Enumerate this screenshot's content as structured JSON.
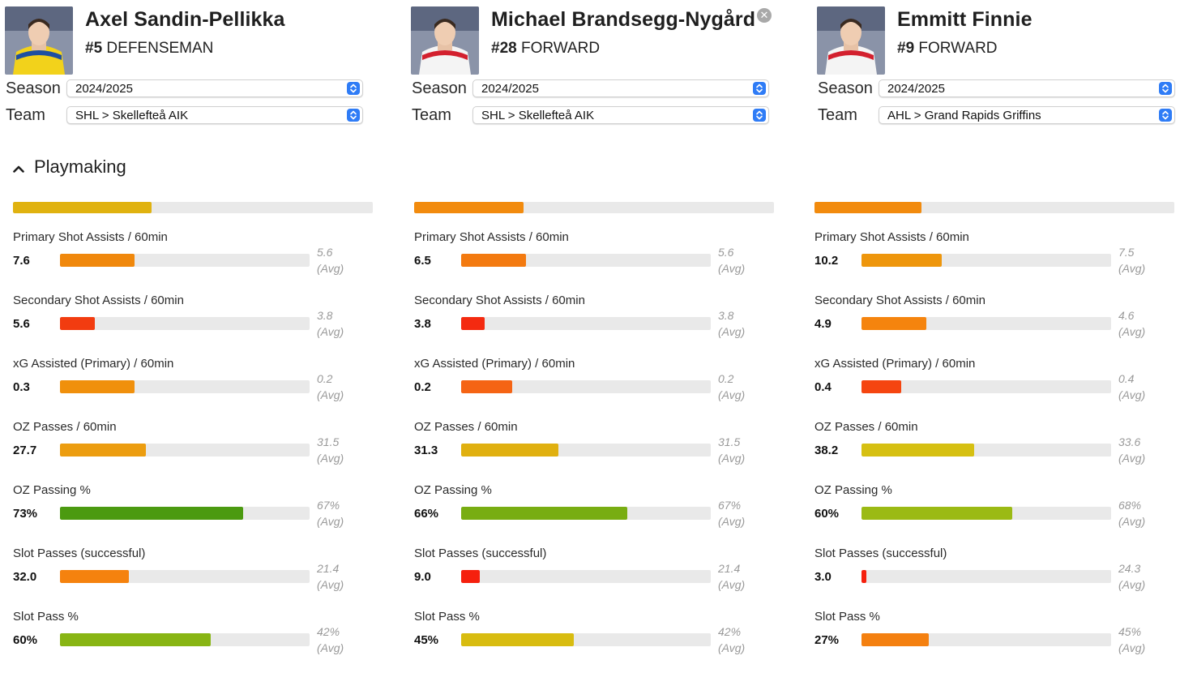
{
  "section_title": "Playmaking",
  "labels": {
    "season": "Season",
    "team": "Team"
  },
  "players": [
    {
      "name": "Axel Sandin-Pellikka",
      "number": "#5",
      "position": "DEFENSEMAN",
      "season": "2024/2025",
      "team": "SHL > Skellefteå AIK",
      "has_close": false,
      "jersey_color": "#f2d21b",
      "jersey_trim": "#1e4fa0",
      "summary_fraction": 0.385,
      "summary_color": "#e0b210",
      "metrics": [
        {
          "label": "Primary Shot Assists / 60min",
          "value": "7.6",
          "avg": "5.6",
          "fill": 0.3,
          "color": "#f0880c"
        },
        {
          "label": "Secondary Shot Assists / 60min",
          "value": "5.6",
          "avg": "3.8",
          "fill": 0.14,
          "color": "#f23c10"
        },
        {
          "label": "xG Assisted (Primary) / 60min",
          "value": "0.3",
          "avg": "0.2",
          "fill": 0.3,
          "color": "#f0900c"
        },
        {
          "label": "OZ Passes / 60min",
          "value": "27.7",
          "avg": "31.5",
          "fill": 0.345,
          "color": "#ec9d10"
        },
        {
          "label": "OZ Passing %",
          "value": "73%",
          "avg": "67%",
          "fill": 0.735,
          "color": "#4b9a10"
        },
        {
          "label": "Slot Passes (successful)",
          "value": "32.0",
          "avg": "21.4",
          "fill": 0.275,
          "color": "#f5820e"
        },
        {
          "label": "Slot Pass %",
          "value": "60%",
          "avg": "42%",
          "fill": 0.605,
          "color": "#88b514"
        }
      ]
    },
    {
      "name": "Michael Brandsegg-Nygård",
      "number": "#28",
      "position": "FORWARD",
      "season": "2024/2025",
      "team": "SHL > Skellefteå AIK",
      "has_close": true,
      "jersey_color": "#f4f4f4",
      "jersey_trim": "#d3202e",
      "summary_fraction": 0.305,
      "summary_color": "#f28b0e",
      "metrics": [
        {
          "label": "Primary Shot Assists / 60min",
          "value": "6.5",
          "avg": "5.6",
          "fill": 0.26,
          "color": "#f37a10"
        },
        {
          "label": "Secondary Shot Assists / 60min",
          "value": "3.8",
          "avg": "3.8",
          "fill": 0.095,
          "color": "#f42a10"
        },
        {
          "label": "xG Assisted (Primary) / 60min",
          "value": "0.2",
          "avg": "0.2",
          "fill": 0.205,
          "color": "#f56414"
        },
        {
          "label": "OZ Passes / 60min",
          "value": "31.3",
          "avg": "31.5",
          "fill": 0.39,
          "color": "#e0b010"
        },
        {
          "label": "OZ Passing %",
          "value": "66%",
          "avg": "67%",
          "fill": 0.665,
          "color": "#78ad12"
        },
        {
          "label": "Slot Passes (successful)",
          "value": "9.0",
          "avg": "21.4",
          "fill": 0.075,
          "color": "#f5200e"
        },
        {
          "label": "Slot Pass %",
          "value": "45%",
          "avg": "42%",
          "fill": 0.45,
          "color": "#d8bc10"
        }
      ]
    },
    {
      "name": "Emmitt Finnie",
      "number": "#9",
      "position": "FORWARD",
      "season": "2024/2025",
      "team": "AHL > Grand Rapids Griffins",
      "has_close": false,
      "jersey_color": "#f4f4f4",
      "jersey_trim": "#d3202e",
      "summary_fraction": 0.298,
      "summary_color": "#f28b0e",
      "metrics": [
        {
          "label": "Primary Shot Assists / 60min",
          "value": "10.2",
          "avg": "7.5",
          "fill": 0.32,
          "color": "#ee960c"
        },
        {
          "label": "Secondary Shot Assists / 60min",
          "value": "4.9",
          "avg": "4.6",
          "fill": 0.26,
          "color": "#f5840e"
        },
        {
          "label": "xG Assisted (Primary) / 60min",
          "value": "0.4",
          "avg": "0.4",
          "fill": 0.16,
          "color": "#f54510"
        },
        {
          "label": "OZ Passes / 60min",
          "value": "38.2",
          "avg": "33.6",
          "fill": 0.45,
          "color": "#d6c012"
        },
        {
          "label": "OZ Passing %",
          "value": "60%",
          "avg": "68%",
          "fill": 0.605,
          "color": "#9bba14"
        },
        {
          "label": "Slot Passes (successful)",
          "value": "3.0",
          "avg": "24.3",
          "fill": 0.02,
          "color": "#f5200e"
        },
        {
          "label": "Slot Pass %",
          "value": "27%",
          "avg": "45%",
          "fill": 0.27,
          "color": "#f48010"
        }
      ]
    }
  ],
  "avg_suffix": "(Avg)",
  "icons": {
    "close": "close-circle-icon",
    "select": "select-updown-icon",
    "section": "chevron-up-icon"
  }
}
